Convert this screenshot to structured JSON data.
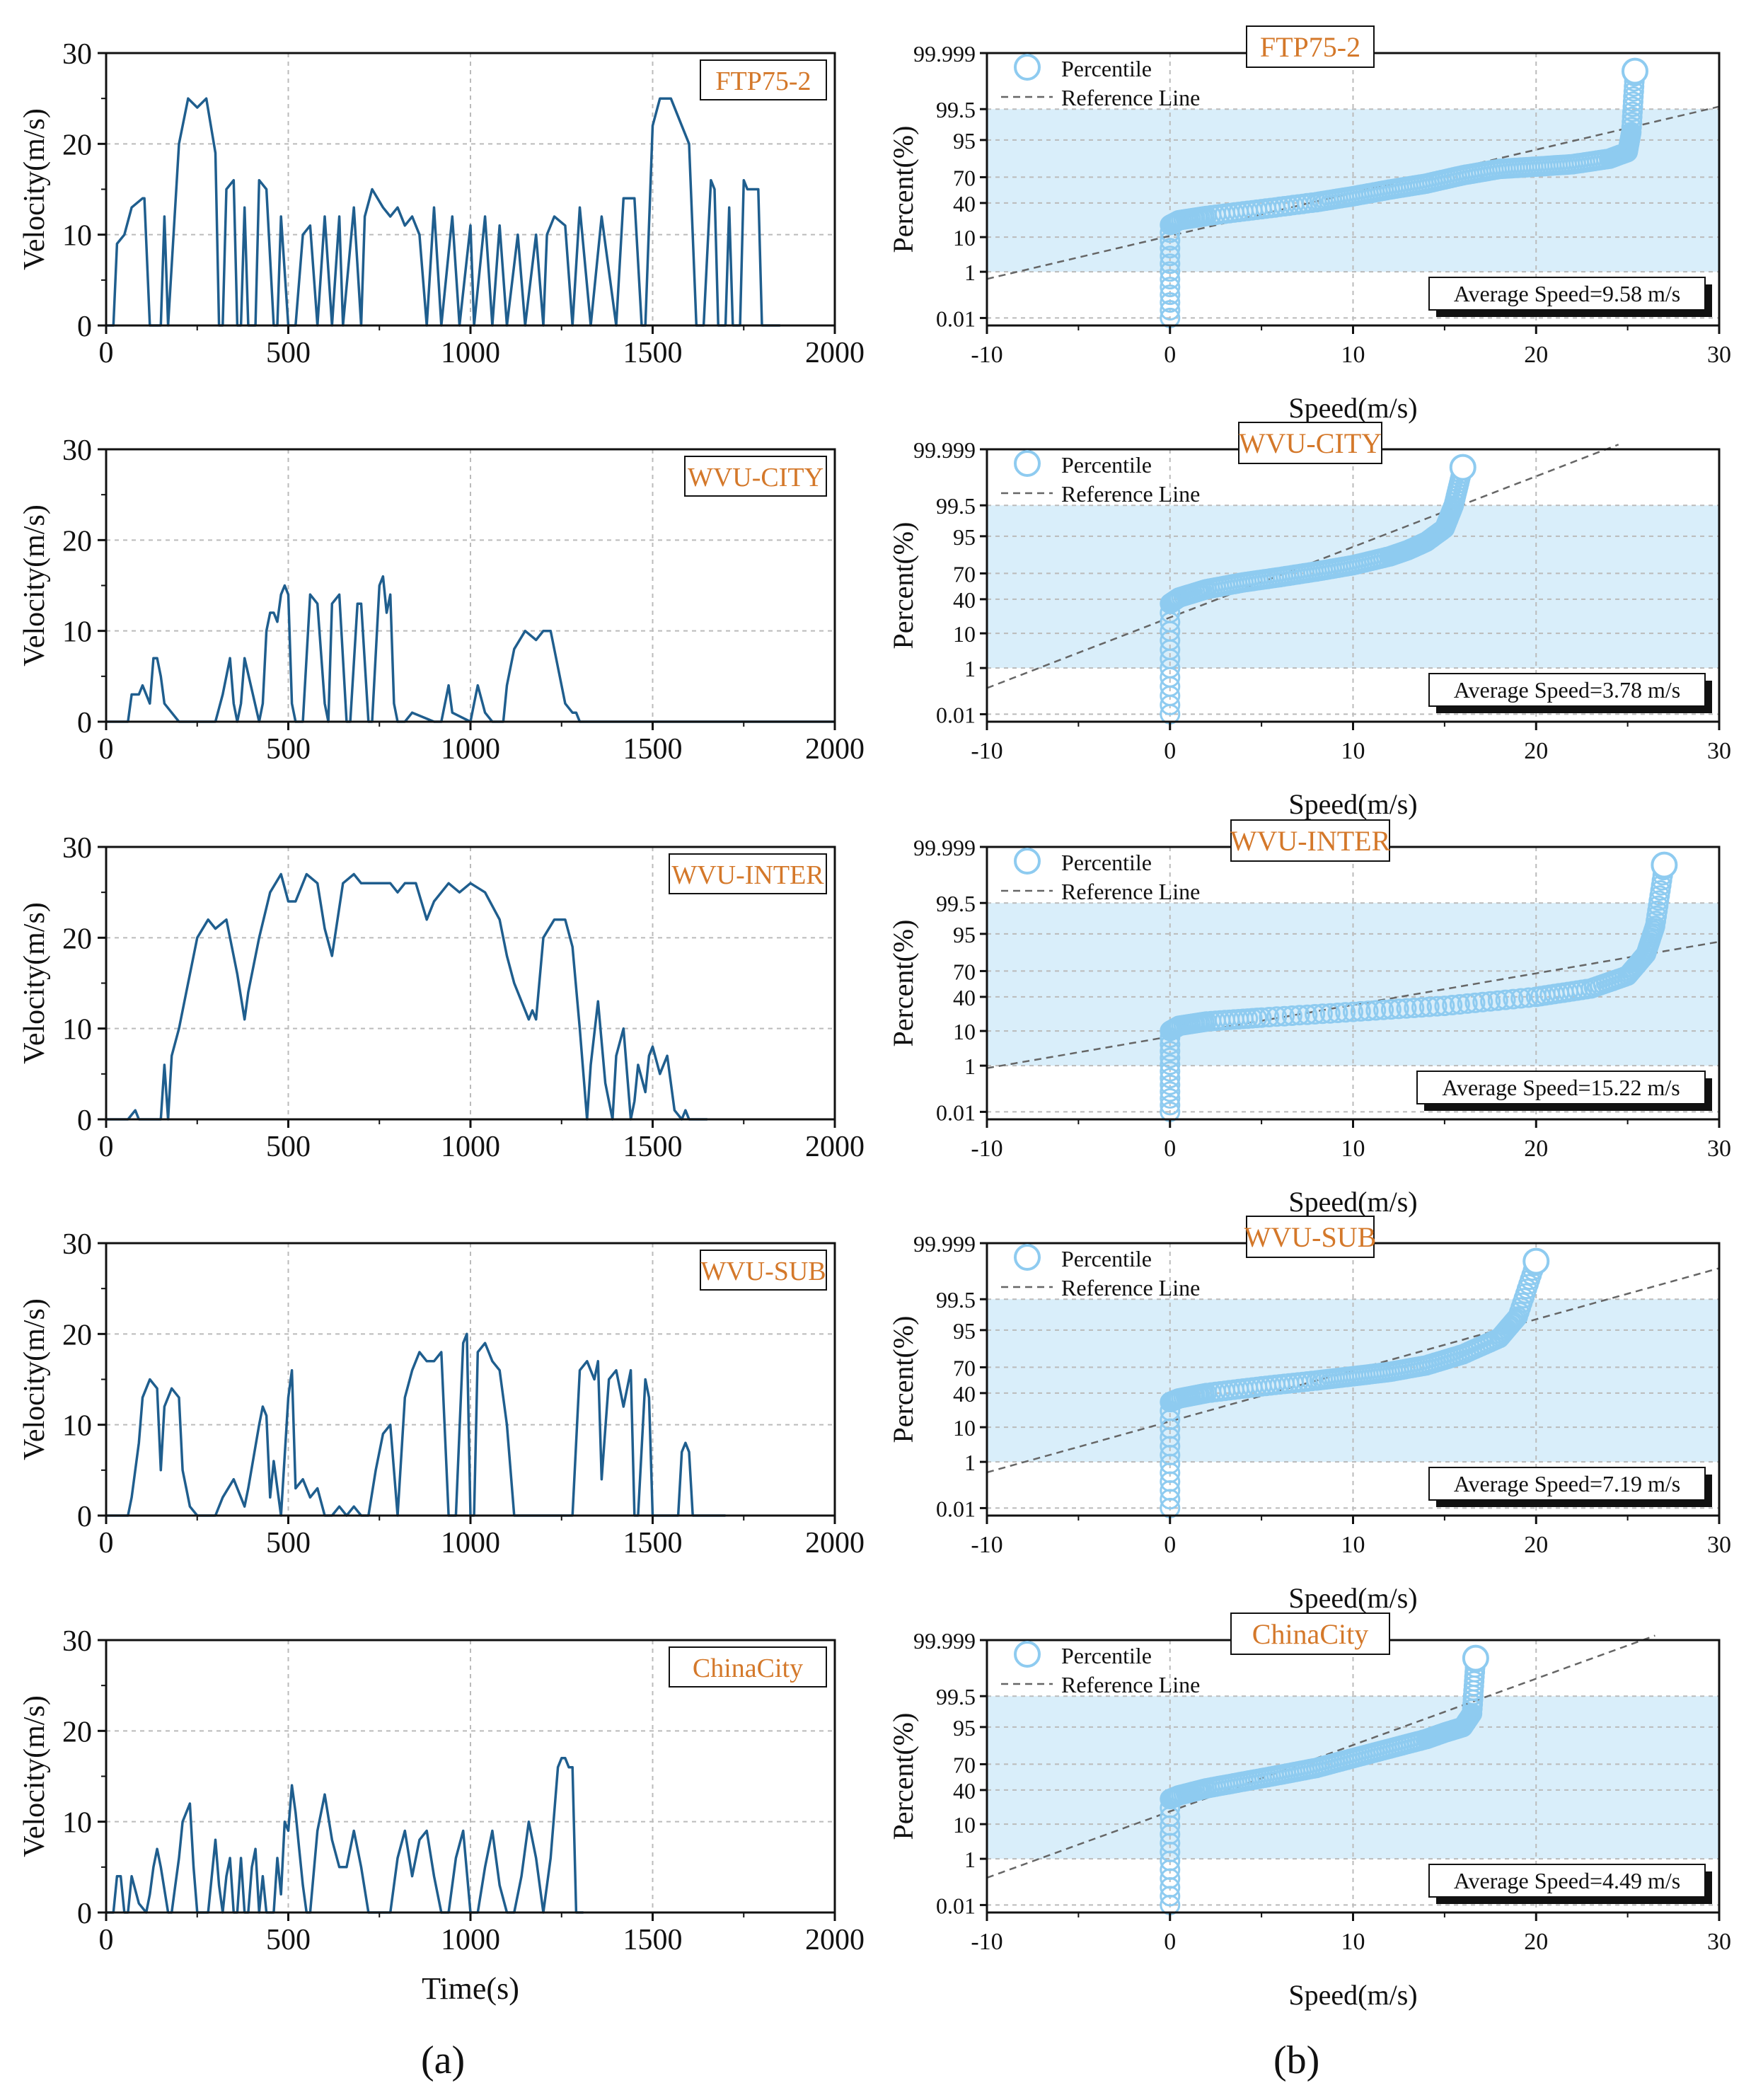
{
  "colors": {
    "line": "#1f5e8e",
    "marker": "#8ecbf0",
    "band": "#d9eefa",
    "tag": "#d4782a",
    "refline": "#666666",
    "grid": "#bbbbbb"
  },
  "labels": {
    "panel_a": "(a)",
    "panel_b": "(b)"
  },
  "legend": {
    "percentile": "Percentile",
    "reference": "Reference Line"
  },
  "chart_data": [
    {
      "type": "line",
      "name": "FTP75-2",
      "xlabel": "",
      "ylabel": "Velocity(m/s)",
      "xlim": [
        0,
        2000
      ],
      "ylim": [
        0,
        30
      ],
      "xticks": [
        0,
        500,
        1000,
        1500,
        2000
      ],
      "yticks": [
        0,
        10,
        20,
        30
      ],
      "x": [
        0,
        20,
        30,
        50,
        70,
        100,
        105,
        120,
        150,
        160,
        170,
        200,
        225,
        250,
        275,
        300,
        310,
        320,
        330,
        350,
        360,
        370,
        380,
        390,
        410,
        420,
        440,
        460,
        470,
        480,
        500,
        520,
        540,
        560,
        580,
        600,
        620,
        640,
        650,
        680,
        700,
        710,
        730,
        760,
        780,
        800,
        820,
        840,
        860,
        880,
        900,
        920,
        950,
        970,
        1000,
        1010,
        1040,
        1060,
        1080,
        1100,
        1130,
        1150,
        1180,
        1200,
        1210,
        1230,
        1260,
        1280,
        1300,
        1330,
        1360,
        1400,
        1420,
        1450,
        1470,
        1480,
        1500,
        1520,
        1550,
        1580,
        1600,
        1620,
        1640,
        1660,
        1670,
        1680,
        1700,
        1710,
        1720,
        1740,
        1750,
        1760,
        1790,
        1800,
        1820,
        1840,
        1850
      ],
      "y": [
        0,
        0,
        9,
        10,
        13,
        14,
        14,
        0,
        0,
        12,
        0,
        20,
        25,
        24,
        25,
        19,
        0,
        0,
        15,
        16,
        0,
        0,
        13,
        0,
        0,
        16,
        15,
        0,
        0,
        12,
        0,
        0,
        10,
        11,
        0,
        12,
        0,
        12,
        0,
        13,
        0,
        12,
        15,
        13,
        12,
        13,
        11,
        12,
        10,
        0,
        13,
        0,
        12,
        0,
        11,
        0,
        12,
        0,
        11,
        0,
        10,
        0,
        10,
        0,
        10,
        12,
        11,
        0,
        13,
        0,
        12,
        0,
        14,
        14,
        0,
        0,
        22,
        25,
        25,
        22,
        20,
        0,
        0,
        16,
        15,
        0,
        0,
        13,
        0,
        0,
        16,
        15,
        15,
        0,
        0,
        0,
        0
      ],
      "tag": "FTP75-2"
    },
    {
      "type": "line",
      "name": "WVU-CITY",
      "xlabel": "",
      "ylabel": "Velocity(m/s)",
      "xlim": [
        0,
        2000
      ],
      "ylim": [
        0,
        30
      ],
      "xticks": [
        0,
        500,
        1000,
        1500,
        2000
      ],
      "yticks": [
        0,
        10,
        20,
        30
      ],
      "x": [
        0,
        60,
        70,
        90,
        100,
        120,
        130,
        140,
        150,
        160,
        180,
        200,
        250,
        300,
        320,
        340,
        350,
        360,
        370,
        380,
        420,
        430,
        440,
        450,
        460,
        470,
        480,
        490,
        500,
        510,
        520,
        540,
        560,
        580,
        600,
        610,
        620,
        640,
        660,
        670,
        690,
        700,
        720,
        730,
        750,
        760,
        770,
        780,
        790,
        800,
        820,
        840,
        900,
        920,
        940,
        950,
        1000,
        1010,
        1020,
        1040,
        1060,
        1090,
        1100,
        1120,
        1150,
        1180,
        1200,
        1220,
        1260,
        1280,
        1290,
        1300,
        1310,
        1320,
        1340,
        1350,
        2000
      ],
      "y": [
        0,
        0,
        3,
        3,
        4,
        2,
        7,
        7,
        5,
        2,
        1,
        0,
        0,
        0,
        3,
        7,
        2,
        0,
        2,
        7,
        0,
        2,
        10,
        12,
        12,
        11,
        14,
        15,
        14,
        2,
        0,
        0,
        14,
        13,
        2,
        0,
        13,
        14,
        0,
        0,
        13,
        13,
        0,
        0,
        15,
        16,
        12,
        14,
        2,
        0,
        0,
        1,
        0,
        0,
        4,
        1,
        0,
        2,
        4,
        1,
        0,
        0,
        4,
        8,
        10,
        9,
        10,
        10,
        2,
        1,
        1,
        0,
        0,
        0,
        0,
        0,
        0
      ],
      "tag": "WVU-CITY"
    },
    {
      "type": "line",
      "name": "WVU-INTER",
      "xlabel": "",
      "ylabel": "Velocity(m/s)",
      "xlim": [
        0,
        2000
      ],
      "ylim": [
        0,
        30
      ],
      "xticks": [
        0,
        500,
        1000,
        1500,
        2000
      ],
      "yticks": [
        0,
        10,
        20,
        30
      ],
      "x": [
        0,
        60,
        80,
        90,
        100,
        150,
        160,
        170,
        180,
        200,
        220,
        250,
        280,
        300,
        330,
        360,
        380,
        390,
        420,
        450,
        480,
        500,
        520,
        550,
        580,
        600,
        620,
        650,
        680,
        700,
        740,
        780,
        800,
        820,
        850,
        880,
        900,
        940,
        970,
        1000,
        1040,
        1080,
        1100,
        1120,
        1140,
        1160,
        1170,
        1180,
        1200,
        1230,
        1260,
        1280,
        1300,
        1320,
        1330,
        1350,
        1370,
        1390,
        1400,
        1420,
        1440,
        1450,
        1460,
        1480,
        1490,
        1500,
        1520,
        1540,
        1560,
        1580,
        1590,
        1600,
        1650
      ],
      "y": [
        0,
        0,
        1,
        0,
        0,
        0,
        6,
        0,
        7,
        10,
        14,
        20,
        22,
        21,
        22,
        16,
        11,
        14,
        20,
        25,
        27,
        24,
        24,
        27,
        26,
        21,
        18,
        26,
        27,
        26,
        26,
        26,
        25,
        26,
        26,
        22,
        24,
        26,
        25,
        26,
        25,
        22,
        18,
        15,
        13,
        11,
        12,
        11,
        20,
        22,
        22,
        19,
        10,
        0,
        6,
        13,
        4,
        0,
        7,
        10,
        0,
        2,
        6,
        3,
        7,
        8,
        5,
        7,
        1,
        0,
        1,
        0,
        0
      ],
      "tag": "WVU-INTER"
    },
    {
      "type": "line",
      "name": "WVU-SUB",
      "xlabel": "",
      "ylabel": "Velocity(m/s)",
      "xlim": [
        0,
        2000
      ],
      "ylim": [
        0,
        30
      ],
      "xticks": [
        0,
        500,
        1000,
        1500,
        2000
      ],
      "yticks": [
        0,
        10,
        20,
        30
      ],
      "x": [
        0,
        60,
        70,
        90,
        100,
        120,
        140,
        150,
        160,
        180,
        200,
        210,
        220,
        230,
        250,
        270,
        300,
        320,
        350,
        380,
        390,
        420,
        430,
        440,
        450,
        460,
        480,
        500,
        510,
        520,
        540,
        560,
        580,
        600,
        620,
        640,
        660,
        680,
        700,
        720,
        740,
        760,
        780,
        800,
        820,
        840,
        860,
        880,
        900,
        920,
        940,
        960,
        980,
        990,
        1000,
        1010,
        1020,
        1040,
        1060,
        1080,
        1100,
        1120,
        1140,
        1180,
        1200,
        1220,
        1240,
        1260,
        1280,
        1300,
        1320,
        1340,
        1350,
        1360,
        1380,
        1400,
        1420,
        1440,
        1450,
        1460,
        1480,
        1490,
        1500,
        1560,
        1570,
        1580,
        1590,
        1600,
        1610,
        1700
      ],
      "y": [
        0,
        0,
        2,
        8,
        13,
        15,
        14,
        5,
        12,
        14,
        13,
        5,
        3,
        1,
        0,
        0,
        0,
        2,
        4,
        1,
        3,
        10,
        12,
        11,
        2,
        6,
        0,
        13,
        16,
        3,
        4,
        2,
        3,
        0,
        0,
        1,
        0,
        1,
        0,
        0,
        5,
        9,
        10,
        0,
        13,
        16,
        18,
        17,
        17,
        18,
        0,
        0,
        19,
        20,
        0,
        0,
        18,
        19,
        17,
        16,
        10,
        0,
        0,
        0,
        0,
        0,
        0,
        0,
        0,
        16,
        17,
        15,
        17,
        4,
        15,
        16,
        12,
        16,
        0,
        0,
        15,
        13,
        0,
        0,
        0,
        7,
        8,
        7,
        0,
        0
      ],
      "tag": "WVU-SUB"
    },
    {
      "type": "line",
      "name": "ChinaCity",
      "xlabel": "Time(s)",
      "ylabel": "Velocity(m/s)",
      "xlim": [
        0,
        2000
      ],
      "ylim": [
        0,
        30
      ],
      "xticks": [
        0,
        500,
        1000,
        1500,
        2000
      ],
      "yticks": [
        0,
        10,
        20,
        30
      ],
      "x": [
        0,
        20,
        30,
        40,
        50,
        60,
        70,
        90,
        110,
        120,
        130,
        140,
        150,
        170,
        180,
        190,
        200,
        210,
        230,
        240,
        250,
        260,
        280,
        300,
        310,
        320,
        330,
        340,
        350,
        360,
        370,
        380,
        390,
        400,
        410,
        420,
        430,
        440,
        460,
        470,
        480,
        490,
        500,
        510,
        520,
        530,
        540,
        550,
        560,
        580,
        600,
        620,
        640,
        660,
        680,
        700,
        720,
        740,
        760,
        780,
        800,
        820,
        840,
        860,
        880,
        900,
        920,
        940,
        960,
        980,
        1000,
        1020,
        1040,
        1060,
        1080,
        1100,
        1120,
        1140,
        1160,
        1180,
        1200,
        1220,
        1240,
        1250,
        1260,
        1270,
        1280,
        1290,
        1300,
        1310
      ],
      "y": [
        0,
        0,
        4,
        4,
        0,
        0,
        4,
        1,
        0,
        2,
        5,
        7,
        5,
        0,
        0,
        3,
        6,
        10,
        12,
        5,
        0,
        0,
        0,
        8,
        3,
        0,
        4,
        6,
        0,
        0,
        6,
        0,
        0,
        5,
        7,
        0,
        4,
        0,
        0,
        6,
        2,
        10,
        9,
        14,
        11,
        7,
        3,
        0,
        0,
        9,
        13,
        8,
        5,
        5,
        9,
        5,
        0,
        0,
        0,
        0,
        6,
        9,
        4,
        8,
        9,
        4,
        0,
        0,
        6,
        9,
        0,
        0,
        5,
        9,
        3,
        0,
        0,
        4,
        10,
        6,
        0,
        6,
        16,
        17,
        17,
        16,
        16,
        0,
        0,
        0
      ],
      "tag": "ChinaCity"
    },
    {
      "type": "scatter",
      "name": "FTP75-2 probability plot",
      "xlabel": "Speed(m/s)",
      "ylabel": "Percent(%)",
      "xlim": [
        -10,
        30
      ],
      "xticks": [
        -10,
        0,
        10,
        20,
        30
      ],
      "yticks": [
        "0.01",
        "1",
        "10",
        "40",
        "70",
        "95",
        "99.5",
        "99.999"
      ],
      "curve_speed": [
        0,
        0,
        0.5,
        2,
        5,
        8,
        10,
        12,
        14,
        16,
        18,
        20,
        22,
        24,
        25,
        25.2,
        25.4
      ],
      "curve_percent": [
        0.01,
        18,
        22,
        26,
        33,
        41,
        48,
        56,
        63,
        72,
        78,
        80,
        82,
        86,
        90,
        97,
        99.99
      ],
      "reference_line": {
        "mean": 9.58,
        "sd": 7.7
      },
      "stat_label": "Average Speed=9.58 m/s",
      "tag": "FTP75-2"
    },
    {
      "type": "scatter",
      "name": "WVU-CITY probability plot",
      "xlabel": "Speed(m/s)",
      "ylabel": "Percent(%)",
      "xlim": [
        -10,
        30
      ],
      "xticks": [
        -10,
        0,
        10,
        20,
        30
      ],
      "yticks": [
        "0.01",
        "1",
        "10",
        "40",
        "70",
        "95",
        "99.5",
        "99.999"
      ],
      "curve_speed": [
        0,
        0,
        0.5,
        2,
        4,
        6,
        8,
        10,
        12,
        13,
        14,
        15,
        15.5,
        16
      ],
      "curve_percent": [
        0.01,
        35,
        42,
        52,
        60,
        66,
        72,
        78,
        85,
        89,
        93,
        97,
        99.5,
        99.99
      ],
      "reference_line": {
        "mean": 3.78,
        "sd": 4.7
      },
      "stat_label": "Average Speed=3.78 m/s",
      "tag": "WVU-CITY"
    },
    {
      "type": "scatter",
      "name": "WVU-INTER probability plot",
      "xlabel": "Speed(m/s)",
      "ylabel": "Percent(%)",
      "xlim": [
        -10,
        30
      ],
      "xticks": [
        -10,
        0,
        10,
        20,
        30
      ],
      "yticks": [
        "0.01",
        "1",
        "10",
        "40",
        "70",
        "95",
        "99.5",
        "99.999"
      ],
      "curve_speed": [
        0,
        0,
        0.5,
        2,
        5,
        10,
        15,
        20,
        23,
        25,
        26,
        26.5,
        27
      ],
      "curve_percent": [
        0.01,
        10,
        13,
        16,
        19,
        24,
        30,
        40,
        50,
        65,
        85,
        97,
        99.99
      ],
      "reference_line": {
        "mean": 15.22,
        "sd": 10.5
      },
      "stat_label": "Average Speed=15.22 m/s",
      "tag": "WVU-INTER"
    },
    {
      "type": "scatter",
      "name": "WVU-SUB probability plot",
      "xlabel": "Speed(m/s)",
      "ylabel": "Percent(%)",
      "xlim": [
        -10,
        30
      ],
      "xticks": [
        -10,
        0,
        10,
        20,
        30
      ],
      "yticks": [
        "0.01",
        "1",
        "10",
        "40",
        "70",
        "95",
        "99.5",
        "99.999"
      ],
      "curve_speed": [
        0,
        0,
        0.5,
        2,
        5,
        8,
        10,
        12,
        14,
        16,
        18,
        19,
        20
      ],
      "curve_percent": [
        0.01,
        30,
        34,
        40,
        48,
        55,
        60,
        65,
        72,
        82,
        92,
        98,
        99.99
      ],
      "reference_line": {
        "mean": 7.19,
        "sd": 6.5
      },
      "stat_label": "Average Speed=7.19 m/s",
      "tag": "WVU-SUB"
    },
    {
      "type": "scatter",
      "name": "ChinaCity probability plot",
      "xlabel": "Speed(m/s)",
      "ylabel": "Percent(%)",
      "xlim": [
        -10,
        30
      ],
      "xticks": [
        -10,
        0,
        10,
        20,
        30
      ],
      "yticks": [
        "0.01",
        "1",
        "10",
        "40",
        "70",
        "95",
        "99.5",
        "99.999"
      ],
      "curve_speed": [
        0,
        0,
        0.5,
        2,
        4,
        6,
        8,
        10,
        12,
        14,
        15,
        16,
        16.5,
        16.7
      ],
      "curve_percent": [
        0.01,
        30,
        34,
        42,
        50,
        58,
        66,
        76,
        84,
        90,
        93,
        95,
        98,
        99.99
      ],
      "reference_line": {
        "mean": 4.49,
        "sd": 5.0
      },
      "stat_label": "Average Speed=4.49 m/s",
      "tag": "ChinaCity"
    }
  ]
}
